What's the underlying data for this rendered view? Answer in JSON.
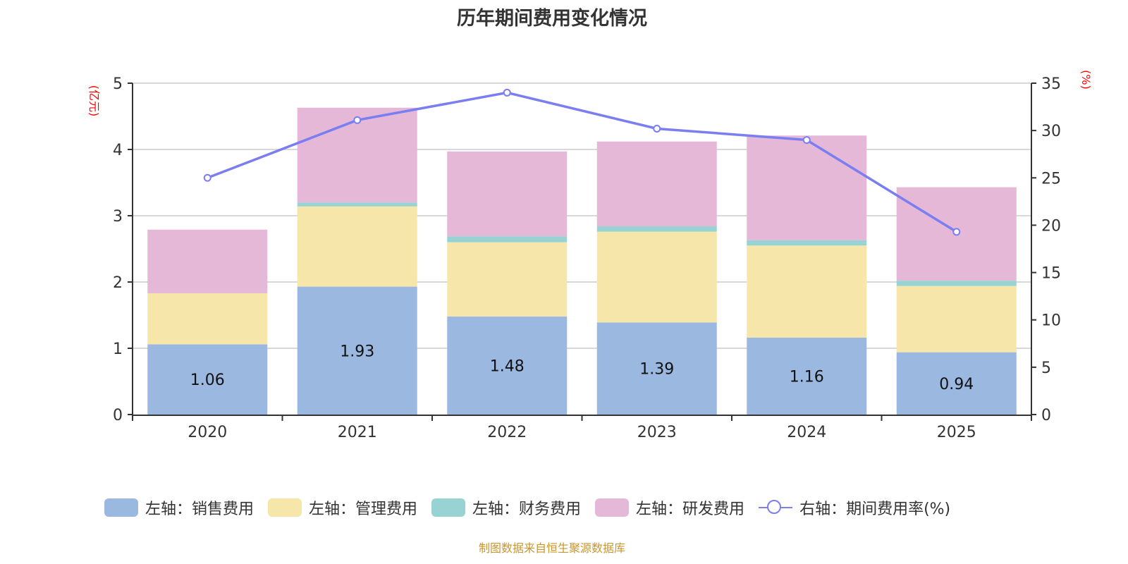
{
  "chart_data": {
    "type": "bar",
    "title": "历年期间费用变化情况",
    "categories": [
      "2020",
      "2021",
      "2022",
      "2023",
      "2024",
      "2025"
    ],
    "stacked": true,
    "left_axis": {
      "label": "(亿元)",
      "range": [
        0,
        5
      ],
      "ticks": [
        0,
        1,
        2,
        3,
        4,
        5
      ],
      "label_color": "#ff0000"
    },
    "right_axis": {
      "label": "(%)",
      "range": [
        0,
        35
      ],
      "ticks": [
        0,
        5,
        10,
        15,
        20,
        25,
        30,
        35
      ],
      "label_color": "#ff0000"
    },
    "grid": true,
    "series": [
      {
        "name": "左轴：销售费用",
        "axis": "left",
        "type": "bar",
        "color": "#9bb8e1",
        "values": [
          1.06,
          1.93,
          1.48,
          1.39,
          1.16,
          0.94
        ],
        "show_labels": true
      },
      {
        "name": "左轴：管理费用",
        "axis": "left",
        "type": "bar",
        "color": "#f7e6a9",
        "values": [
          0.77,
          1.21,
          1.12,
          1.37,
          1.39,
          1.0
        ]
      },
      {
        "name": "左轴：财务费用",
        "axis": "left",
        "type": "bar",
        "color": "#97d3d3",
        "values": [
          0.0,
          0.06,
          0.09,
          0.08,
          0.08,
          0.08
        ]
      },
      {
        "name": "左轴：研发费用",
        "axis": "left",
        "type": "bar",
        "color": "#e6b8d8",
        "values": [
          0.96,
          1.43,
          1.28,
          1.28,
          1.58,
          1.41
        ]
      },
      {
        "name": "右轴：期间费用率(%)",
        "axis": "right",
        "type": "line",
        "color": "#7a7ef0",
        "values": [
          25.0,
          31.1,
          34.0,
          30.2,
          29.0,
          19.3
        ]
      }
    ],
    "legend_position": "bottom"
  },
  "footer": "制图数据来自恒生聚源数据库"
}
